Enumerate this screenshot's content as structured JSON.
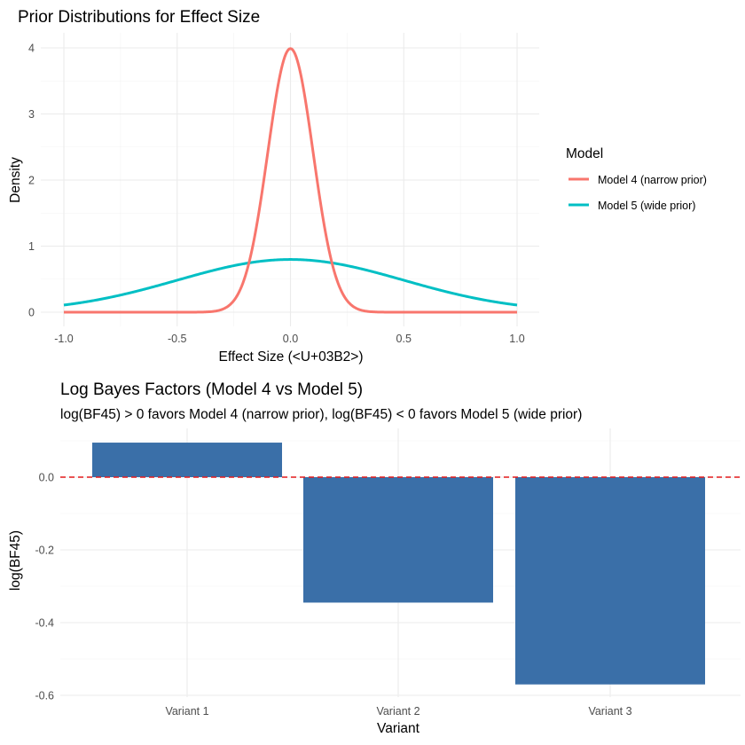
{
  "chart_data": [
    {
      "type": "line",
      "title": "Prior Distributions for Effect Size",
      "xlabel": "Effect Size (<U+03B2>)",
      "ylabel": "Density",
      "xlim": [
        -1.0,
        1.0
      ],
      "ylim": [
        0,
        4
      ],
      "x_ticks": [
        "-1.0",
        "-0.5",
        "0.0",
        "0.5",
        "1.0"
      ],
      "y_ticks": [
        "0",
        "1",
        "2",
        "3",
        "4"
      ],
      "grid": true,
      "legend": {
        "title": "Model",
        "placement": "right"
      },
      "series": [
        {
          "name": "Model 4 (narrow prior)",
          "distribution": "normal",
          "mean": 0,
          "sd": 0.1,
          "color": "#F8766D"
        },
        {
          "name": "Model 5 (wide prior)",
          "distribution": "normal",
          "mean": 0,
          "sd": 0.5,
          "color": "#00BFC4"
        }
      ]
    },
    {
      "type": "bar",
      "title": "Log Bayes Factors (Model 4 vs Model 5)",
      "subtitle": "log(BF45) > 0 favors Model 4 (narrow prior), log(BF45) < 0 favors Model 5 (wide prior)",
      "xlabel": "Variant",
      "ylabel": "log(BF45)",
      "categories": [
        "Variant 1",
        "Variant 2",
        "Variant 3"
      ],
      "values": [
        0.095,
        -0.345,
        -0.57
      ],
      "ylim": [
        -0.6,
        0.1
      ],
      "y_ticks": [
        "0.0",
        "-0.2",
        "-0.4",
        "-0.6"
      ],
      "reference_line": {
        "y": 0,
        "style": "dashed",
        "color": "#E41A1C"
      },
      "bar_color": "#3A6FA8",
      "grid": true
    }
  ]
}
